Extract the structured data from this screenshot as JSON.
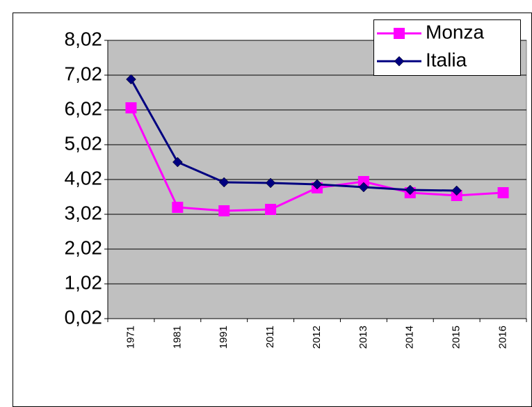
{
  "chart_data": {
    "type": "line",
    "categories": [
      "1971",
      "1981",
      "1991",
      "2011",
      "2012",
      "2013",
      "2014",
      "2015",
      "2016"
    ],
    "series": [
      {
        "name": "Monza",
        "color": "#ff00ff",
        "marker": "square",
        "values": [
          6.08,
          3.22,
          3.12,
          3.16,
          3.78,
          3.96,
          3.64,
          3.56,
          3.64
        ]
      },
      {
        "name": "Italia",
        "color": "#000080",
        "marker": "diamond",
        "values": [
          6.9,
          4.52,
          3.94,
          3.92,
          3.88,
          3.8,
          3.72,
          3.7,
          null
        ]
      }
    ],
    "ylim": [
      0.02,
      8.02
    ],
    "yticks": [
      {
        "value": 0.02,
        "label": "0,02"
      },
      {
        "value": 1.02,
        "label": "1,02"
      },
      {
        "value": 2.02,
        "label": "2,02"
      },
      {
        "value": 3.02,
        "label": "3,02"
      },
      {
        "value": 4.02,
        "label": "4,02"
      },
      {
        "value": 5.02,
        "label": "5,02"
      },
      {
        "value": 6.02,
        "label": "6,02"
      },
      {
        "value": 7.02,
        "label": "7,02"
      },
      {
        "value": 8.02,
        "label": "8,02"
      }
    ],
    "grid": true,
    "legend": "top-right"
  }
}
